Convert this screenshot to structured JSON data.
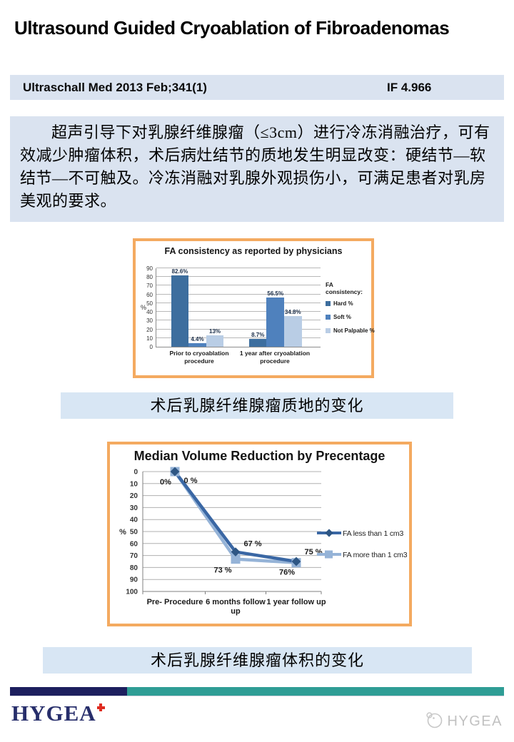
{
  "page": {
    "title": "Ultrasound Guided Cryoablation of Fibroadenomas",
    "journal": {
      "citation": "Ultraschall Med 2013 Feb;341(1)",
      "impact_factor": "IF 4.966"
    },
    "abstract_cn": "超声引导下对乳腺纤维腺瘤（≤3cm）进行冷冻消融治疗，可有效减少肿瘤体积，术后病灶结节的质地发生明显改变：硬结节—软结节—不可触及。冷冻消融对乳腺外观损伤小，可满足患者对乳房美观的要求。",
    "captions": {
      "consistency": "术后乳腺纤维腺瘤质地的变化",
      "volume": "术后乳腺纤维腺瘤体积的变化"
    },
    "footer": {
      "logo_text": "HYGEA",
      "watermark_text": "HYGEA"
    }
  },
  "icons": {
    "logo_cross": "red-cross-icon",
    "watermark_emblem": "hygea-emblem-icon"
  },
  "colors": {
    "band_blue": "#dae3f0",
    "caption_blue": "#d8e6f4",
    "chart_border_orange": "#f4aa60",
    "footer_navy": "#1d1f5e",
    "footer_teal": "#2f9d95",
    "logo_navy": "#272e6b",
    "logo_cross_red": "#df2b20"
  },
  "chart_data": [
    {
      "type": "bar",
      "title": "FA consistency as reported by physicians",
      "ylabel": "%",
      "ylim": [
        0,
        90
      ],
      "ytick_step": 10,
      "grid": true,
      "legend_position": "right",
      "legend_title": "FA consistency:",
      "categories": [
        "Prior to cryoablation procedure",
        "1 year after cryoablation procedure"
      ],
      "category_lines": [
        [
          "Prior to cryoablation",
          "procedure"
        ],
        [
          "1 year after cryoablation",
          "procedure"
        ]
      ],
      "series": [
        {
          "name": "Hard %",
          "color": "#3d6e9e",
          "values": [
            82.6,
            8.7
          ],
          "labels": [
            "82.6%",
            "8.7%"
          ]
        },
        {
          "name": "Soft %",
          "color": "#4f81bd",
          "values": [
            4.4,
            56.5
          ],
          "labels": [
            "4.4%",
            "56.5%"
          ]
        },
        {
          "name": "Not Palpable %",
          "color": "#b9cde5",
          "values": [
            13,
            34.8
          ],
          "labels": [
            "13%",
            "34.8%"
          ]
        }
      ]
    },
    {
      "type": "line",
      "title": "Median Volume Reduction by Precentage",
      "ylabel": "%",
      "ylim": [
        0,
        100
      ],
      "ytick_step": 10,
      "y_inverted": true,
      "grid": true,
      "legend_position": "right",
      "categories": [
        "Pre- Procedure",
        "6 months follow up",
        "1 year follow up"
      ],
      "category_lines": [
        [
          "Pre- Procedure"
        ],
        [
          "6 months follow",
          "up"
        ],
        [
          "1 year follow up"
        ]
      ],
      "series": [
        {
          "name": "FA less than 1 cm3",
          "color": "#3a67a4",
          "marker": "diamond",
          "marker_color": "#2e5684",
          "values": [
            0,
            67,
            75
          ],
          "labels": [
            "0%",
            "67 %",
            "75 %"
          ],
          "label_offsets": [
            [
              -13,
              18
            ],
            [
              24,
              -8
            ],
            [
              24,
              -10
            ]
          ]
        },
        {
          "name": "FA more than 1 cm3",
          "color": "#95b3d7",
          "marker": "square",
          "marker_color": "#95b3d7",
          "values": [
            0,
            73,
            76
          ],
          "labels": [
            "0 %",
            "73 %",
            "76%"
          ],
          "label_offsets": [
            [
              22,
              16
            ],
            [
              -18,
              19
            ],
            [
              -13,
              17
            ]
          ]
        }
      ]
    }
  ]
}
